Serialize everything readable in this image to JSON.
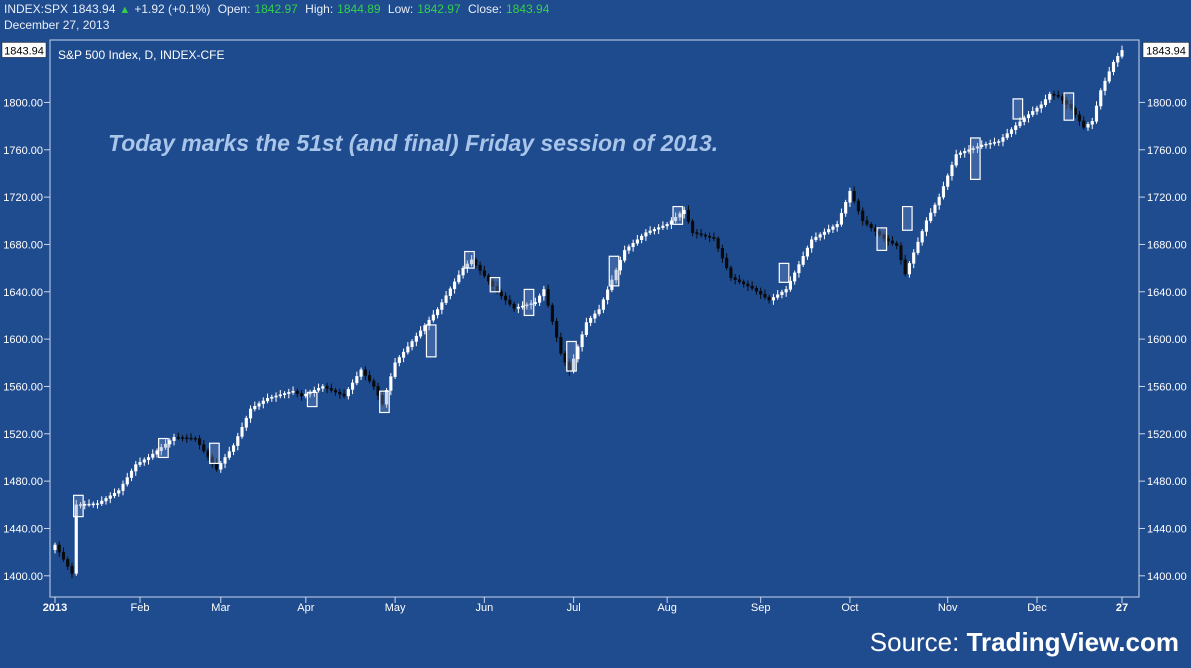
{
  "header": {
    "symbol": "INDEX:SPX",
    "last": "1843.94",
    "change": "+1.92 (+0.1%)",
    "open_label": "Open:",
    "open": "1842.97",
    "high_label": "High:",
    "high": "1844.89",
    "low_label": "Low:",
    "low": "1842.97",
    "close_label": "Close:",
    "close": "1843.94",
    "date": "December 27, 2013"
  },
  "source": {
    "prefix": "Source: ",
    "name": "TradingView.com"
  },
  "colors": {
    "background": "#1f4b8f",
    "panel": "#1e4a8e",
    "up_candle": "#ffffff",
    "down_candle": "#000000",
    "up_change": "#35d04a",
    "annotation": "#a9c6ea"
  },
  "chart_data": {
    "type": "candlestick",
    "title": "S&P 500 Index, D, INDEX-CFE",
    "annotation": "Today marks the 51st (and final) Friday session of 2013.",
    "last_price_label": "1843.94",
    "ylim": [
      1388,
      1846
    ],
    "yticks": [
      "1400.00",
      "1440.00",
      "1480.00",
      "1520.00",
      "1560.00",
      "1600.00",
      "1640.00",
      "1680.00",
      "1720.00",
      "1760.00",
      "1800.00"
    ],
    "xticks": [
      "2013",
      "Feb",
      "Mar",
      "Apr",
      "May",
      "Jun",
      "Jul",
      "Aug",
      "Sep",
      "Oct",
      "Nov",
      "Dec",
      "27"
    ],
    "xtick_idx": [
      0,
      20,
      39,
      59,
      80,
      101,
      122,
      144,
      166,
      187,
      210,
      231,
      251
    ],
    "n_sessions": 252,
    "anchors": [
      [
        0,
        1426
      ],
      [
        4,
        1402
      ],
      [
        5,
        1460
      ],
      [
        10,
        1461
      ],
      [
        15,
        1472
      ],
      [
        19,
        1494
      ],
      [
        22,
        1500
      ],
      [
        28,
        1517
      ],
      [
        33,
        1516
      ],
      [
        38,
        1490
      ],
      [
        42,
        1510
      ],
      [
        46,
        1541
      ],
      [
        50,
        1550
      ],
      [
        56,
        1556
      ],
      [
        58,
        1552
      ],
      [
        63,
        1560
      ],
      [
        68,
        1552
      ],
      [
        72,
        1574
      ],
      [
        75,
        1560
      ],
      [
        77,
        1545
      ],
      [
        80,
        1580
      ],
      [
        90,
        1625
      ],
      [
        96,
        1660
      ],
      [
        98,
        1667
      ],
      [
        104,
        1640
      ],
      [
        108,
        1626
      ],
      [
        113,
        1631
      ],
      [
        115,
        1642
      ],
      [
        119,
        1588
      ],
      [
        121,
        1573
      ],
      [
        125,
        1614
      ],
      [
        128,
        1625
      ],
      [
        134,
        1675
      ],
      [
        139,
        1690
      ],
      [
        144,
        1697
      ],
      [
        148,
        1709
      ],
      [
        150,
        1690
      ],
      [
        155,
        1685
      ],
      [
        159,
        1652
      ],
      [
        164,
        1643
      ],
      [
        168,
        1633
      ],
      [
        172,
        1642
      ],
      [
        178,
        1684
      ],
      [
        184,
        1697
      ],
      [
        187,
        1725
      ],
      [
        190,
        1700
      ],
      [
        195,
        1685
      ],
      [
        198,
        1679
      ],
      [
        200,
        1655
      ],
      [
        205,
        1700
      ],
      [
        208,
        1720
      ],
      [
        212,
        1756
      ],
      [
        218,
        1764
      ],
      [
        222,
        1767
      ],
      [
        228,
        1787
      ],
      [
        232,
        1798
      ],
      [
        234,
        1807
      ],
      [
        236,
        1805
      ],
      [
        239,
        1795
      ],
      [
        242,
        1779
      ],
      [
        244,
        1784
      ],
      [
        246,
        1810
      ],
      [
        249,
        1834
      ],
      [
        251,
        1844
      ]
    ],
    "hollow_boxes": [
      {
        "i": [
          5,
          6
        ],
        "y": [
          1450,
          1468
        ]
      },
      {
        "i": [
          25,
          26
        ],
        "y": [
          1500,
          1516
        ]
      },
      {
        "i": [
          37,
          38
        ],
        "y": [
          1495,
          1512
        ]
      },
      {
        "i": [
          60,
          61
        ],
        "y": [
          1543,
          1555
        ]
      },
      {
        "i": [
          77,
          78
        ],
        "y": [
          1538,
          1556
        ]
      },
      {
        "i": [
          88,
          89
        ],
        "y": [
          1585,
          1612
        ]
      },
      {
        "i": [
          97,
          98
        ],
        "y": [
          1660,
          1674
        ]
      },
      {
        "i": [
          103,
          104
        ],
        "y": [
          1640,
          1652
        ]
      },
      {
        "i": [
          111,
          112
        ],
        "y": [
          1620,
          1642
        ]
      },
      {
        "i": [
          121,
          122
        ],
        "y": [
          1573,
          1598
        ]
      },
      {
        "i": [
          131,
          132
        ],
        "y": [
          1645,
          1670
        ]
      },
      {
        "i": [
          146,
          147
        ],
        "y": [
          1697,
          1712
        ]
      },
      {
        "i": [
          171,
          172
        ],
        "y": [
          1648,
          1664
        ]
      },
      {
        "i": [
          194,
          195
        ],
        "y": [
          1675,
          1694
        ]
      },
      {
        "i": [
          200,
          201
        ],
        "y": [
          1692,
          1712
        ]
      },
      {
        "i": [
          216,
          217
        ],
        "y": [
          1735,
          1770
        ]
      },
      {
        "i": [
          226,
          227
        ],
        "y": [
          1786,
          1803
        ]
      },
      {
        "i": [
          238,
          239
        ],
        "y": [
          1785,
          1808
        ]
      }
    ]
  }
}
